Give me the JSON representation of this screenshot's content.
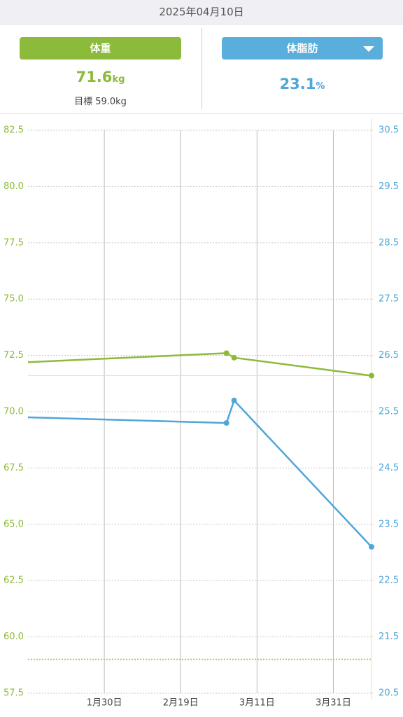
{
  "header": {
    "date": "2025年04月10日"
  },
  "summary": {
    "weight": {
      "value": "71.6",
      "unit": "kg",
      "goal": "目標 59.0kg"
    },
    "body_fat": {
      "value": "23.1",
      "unit": "%"
    }
  },
  "chart_data": {
    "type": "line",
    "x": [
      "2025-01-10",
      "2025-03-03",
      "2025-03-05",
      "2025-04-10"
    ],
    "xlim": [
      "2025-01-10",
      "2025-04-10"
    ],
    "xticks": [
      {
        "value": "2025-01-30",
        "label": "1月30日"
      },
      {
        "value": "2025-02-19",
        "label": "2月19日"
      },
      {
        "value": "2025-03-11",
        "label": "3月11日"
      },
      {
        "value": "2025-03-31",
        "label": "3月31日"
      }
    ],
    "ylim": [
      57.5,
      82.5
    ],
    "yticks": [
      57.5,
      {
        "value": 60,
        "label": "60.0"
      },
      62.5,
      {
        "value": 65,
        "label": "65.0"
      },
      67.5,
      {
        "value": 70,
        "label": "70.0"
      },
      72.5,
      {
        "value": 75,
        "label": "75.0"
      },
      77.5,
      {
        "value": 80,
        "label": "80.0"
      },
      82.5
    ],
    "y2lim": [
      20.5,
      30.5
    ],
    "y2ticks": [
      20.5,
      21.5,
      22.5,
      23.5,
      24.5,
      25.5,
      26.5,
      27.5,
      28.5,
      29.5,
      30.5
    ],
    "grid": true,
    "series": [
      {
        "name": "体重",
        "color": "#8cba3a",
        "values": [
          72.2,
          72.6,
          72.4,
          71.6
        ]
      },
      {
        "name": "体脂肪",
        "color": "#4fa6d8",
        "axis": "y2",
        "values": [
          25.4,
          25.3,
          25.7,
          23.1
        ]
      }
    ],
    "reference_lines": [
      {
        "value": 59.0,
        "color": "#a6cc4c",
        "style": "dotted"
      },
      {
        "value": 71.6,
        "color": "#f5dcb4",
        "style": "solid"
      }
    ]
  }
}
